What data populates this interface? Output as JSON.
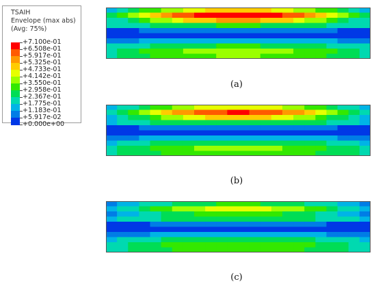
{
  "legend": {
    "title_lines": [
      "TSAIH",
      "Envelope (max abs)",
      "(Avg: 75%)"
    ],
    "ticks": [
      "+7.100e-01",
      "+6.508e-01",
      "+5.917e-01",
      "+5.325e-01",
      "+4.733e-01",
      "+4.142e-01",
      "+3.550e-01",
      "+2.958e-01",
      "+2.367e-01",
      "+1.775e-01",
      "+1.183e-01",
      "+5.917e-02",
      "+0.000e+00"
    ],
    "colors": [
      "#ff0000",
      "#ff5a00",
      "#ff9900",
      "#ffcc00",
      "#e6ff00",
      "#9bff00",
      "#33e800",
      "#00dd55",
      "#00d9b0",
      "#00b4e6",
      "#007de6",
      "#0038e6"
    ]
  },
  "panels": [
    {
      "caption": "(a)",
      "peak": 0.71
    },
    {
      "caption": "(b)",
      "peak": 0.64
    },
    {
      "caption": "(c)",
      "peak": 0.42
    }
  ]
}
